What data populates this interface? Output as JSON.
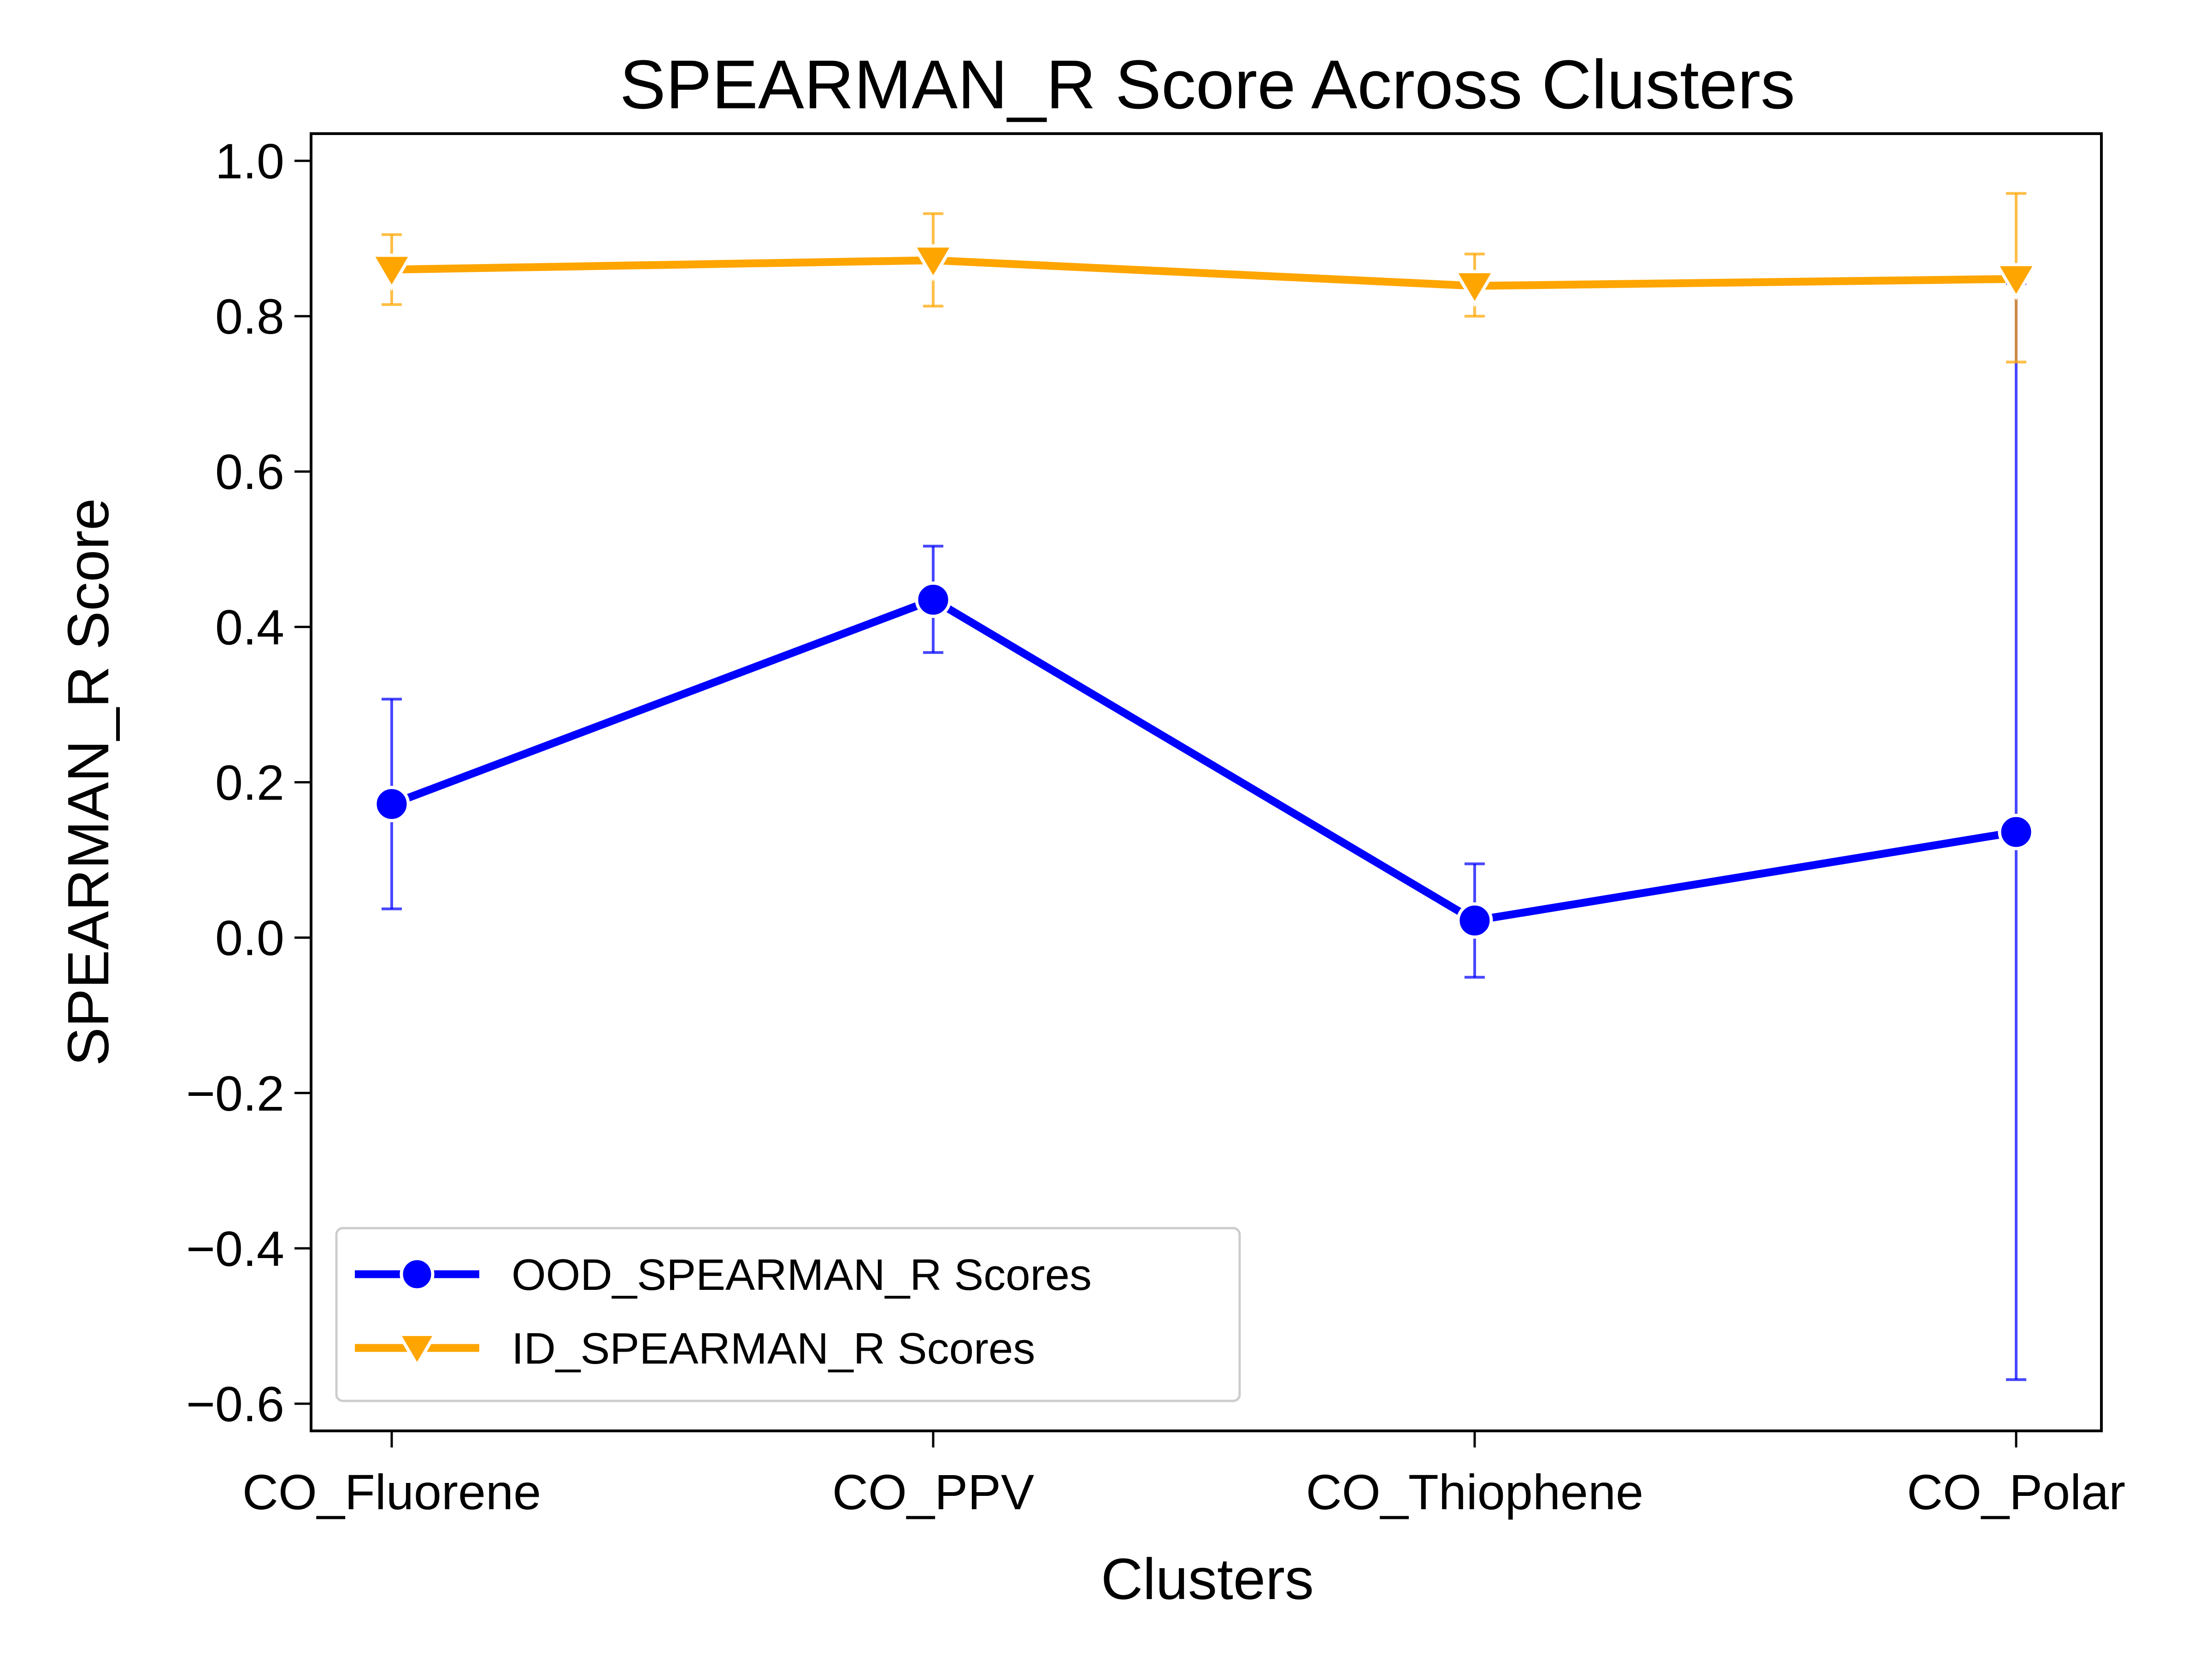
{
  "chart_data": {
    "type": "line",
    "title": "SPEARMAN_R Score Across Clusters",
    "xlabel": "Clusters",
    "ylabel": "SPEARMAN_R Score",
    "categories": [
      "CO_Fluorene",
      "CO_PPV",
      "CO_Thiophene",
      "CO_Polar"
    ],
    "ylim": [
      -0.635,
      1.035
    ],
    "yticks": [
      -0.6,
      -0.4,
      -0.2,
      0.0,
      0.2,
      0.4,
      0.6,
      0.8,
      1.0
    ],
    "ytick_labels": [
      "−0.6",
      "−0.4",
      "−0.2",
      "0.0",
      "0.2",
      "0.4",
      "0.6",
      "0.8",
      "1.0"
    ],
    "grid": false,
    "legend_position": "lower-left",
    "series": [
      {
        "name": "OOD_SPEARMAN_R Scores",
        "color": "#0000ff",
        "marker": "circle",
        "values": [
          0.172,
          0.435,
          0.022,
          0.136
        ],
        "error_low": [
          0.037,
          0.367,
          -0.051,
          -0.569
        ],
        "error_high": [
          0.307,
          0.504,
          0.095,
          0.842
        ]
      },
      {
        "name": "ID_SPEARMAN_R Scores",
        "color": "#ffa500",
        "marker": "triangle-down",
        "values": [
          0.86,
          0.872,
          0.839,
          0.848
        ],
        "error_low": [
          0.815,
          0.813,
          0.8,
          0.741
        ],
        "error_high": [
          0.905,
          0.932,
          0.88,
          0.958
        ]
      }
    ]
  }
}
